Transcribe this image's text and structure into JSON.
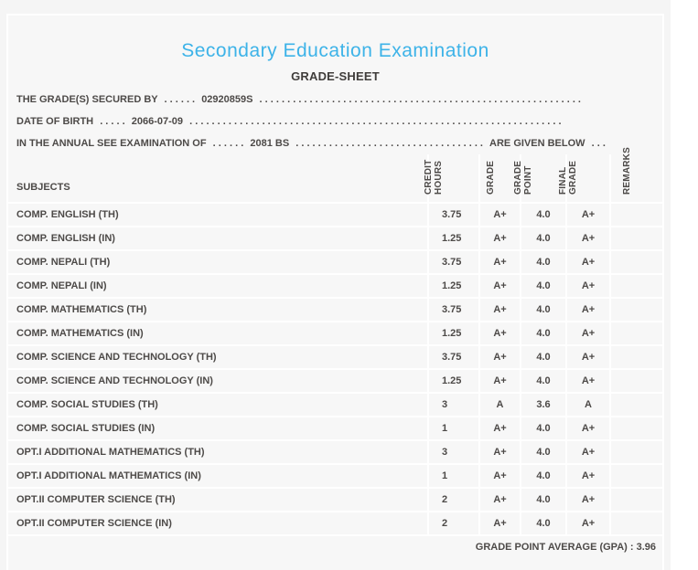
{
  "colors": {
    "accent": "#3db3e8",
    "text": "#4d4a48"
  },
  "title": "Secondary Education Examination",
  "subtitle": "GRADE-SHEET",
  "info_lines": [
    {
      "label": "THE GRADE(S) SECURED BY",
      "dots_before": ". . . . . .",
      "value": "02920859S",
      "dots_after": ". . . . . . . . . . . . . . . . . . . . . . . . . . . . . . . . . . . . . . . . . . . . . . . . . . . . . . . . . .",
      "suffix": "",
      "dots_end": ""
    },
    {
      "label": "DATE OF BIRTH",
      "dots_before": ". . . . .",
      "value": "2066-07-09",
      "dots_after": ". . . . . . . . . . . . . . . . . . . . . . . . . . . . . . . . . . . . . . . . . . . . . . . . . . . . . . . . . . . . . . . . . . .",
      "suffix": "",
      "dots_end": ""
    },
    {
      "label": "IN THE ANNUAL SEE EXAMINATION OF",
      "dots_before": ". . . . . .",
      "value": "2081 BS",
      "dots_after": ". . . . . . . . . . . . . . . . . . . . . . . . . . . . . . . . . .",
      "suffix": "ARE GIVEN BELOW",
      "dots_end": ". . ."
    }
  ],
  "table": {
    "subjects_header": "SUBJECTS",
    "columns": [
      {
        "label": "CREDIT\nHOURS"
      },
      {
        "label": "GRADE"
      },
      {
        "label": "GRADE\nPOINT"
      },
      {
        "label": "FINAL\nGRADE"
      },
      {
        "label": "REMARKS"
      }
    ],
    "rows": [
      {
        "subject": "COMP. ENGLISH (TH)",
        "credit": "3.75",
        "grade": "A+",
        "grade_point": "4.0",
        "final_grade": "A+",
        "remarks": ""
      },
      {
        "subject": "COMP. ENGLISH (IN)",
        "credit": "1.25",
        "grade": "A+",
        "grade_point": "4.0",
        "final_grade": "A+",
        "remarks": ""
      },
      {
        "subject": "COMP. NEPALI (TH)",
        "credit": "3.75",
        "grade": "A+",
        "grade_point": "4.0",
        "final_grade": "A+",
        "remarks": ""
      },
      {
        "subject": "COMP. NEPALI (IN)",
        "credit": "1.25",
        "grade": "A+",
        "grade_point": "4.0",
        "final_grade": "A+",
        "remarks": ""
      },
      {
        "subject": "COMP. MATHEMATICS (TH)",
        "credit": "3.75",
        "grade": "A+",
        "grade_point": "4.0",
        "final_grade": "A+",
        "remarks": ""
      },
      {
        "subject": "COMP. MATHEMATICS (IN)",
        "credit": "1.25",
        "grade": "A+",
        "grade_point": "4.0",
        "final_grade": "A+",
        "remarks": ""
      },
      {
        "subject": "COMP. SCIENCE AND TECHNOLOGY (TH)",
        "credit": "3.75",
        "grade": "A+",
        "grade_point": "4.0",
        "final_grade": "A+",
        "remarks": ""
      },
      {
        "subject": "COMP. SCIENCE AND TECHNOLOGY (IN)",
        "credit": "1.25",
        "grade": "A+",
        "grade_point": "4.0",
        "final_grade": "A+",
        "remarks": ""
      },
      {
        "subject": "COMP. SOCIAL STUDIES (TH)",
        "credit": "3",
        "grade": "A",
        "grade_point": "3.6",
        "final_grade": "A",
        "remarks": ""
      },
      {
        "subject": "COMP. SOCIAL STUDIES (IN)",
        "credit": "1",
        "grade": "A+",
        "grade_point": "4.0",
        "final_grade": "A+",
        "remarks": ""
      },
      {
        "subject": "OPT.I ADDITIONAL MATHEMATICS (TH)",
        "credit": "3",
        "grade": "A+",
        "grade_point": "4.0",
        "final_grade": "A+",
        "remarks": ""
      },
      {
        "subject": "OPT.I ADDITIONAL MATHEMATICS (IN)",
        "credit": "1",
        "grade": "A+",
        "grade_point": "4.0",
        "final_grade": "A+",
        "remarks": ""
      },
      {
        "subject": "OPT.II COMPUTER SCIENCE (TH)",
        "credit": "2",
        "grade": "A+",
        "grade_point": "4.0",
        "final_grade": "A+",
        "remarks": ""
      },
      {
        "subject": "OPT.II COMPUTER SCIENCE (IN)",
        "credit": "2",
        "grade": "A+",
        "grade_point": "4.0",
        "final_grade": "A+",
        "remarks": ""
      }
    ],
    "footer": "GRADE POINT AVERAGE (GPA) : 3.96"
  }
}
